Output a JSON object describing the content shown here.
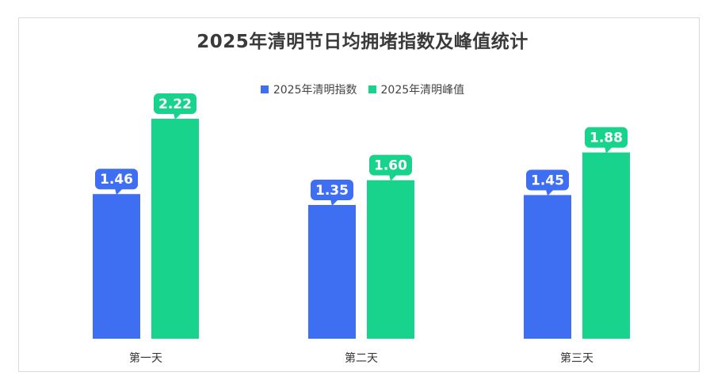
{
  "chart_data": {
    "type": "bar",
    "title": "2025年清明节日均拥堵指数及峰值统计",
    "categories": [
      "第一天",
      "第二天",
      "第三天"
    ],
    "series": [
      {
        "name": "2025年清明指数",
        "values": [
          1.46,
          1.35,
          1.45
        ],
        "color": "#3e6ff2"
      },
      {
        "name": "2025年清明峰值",
        "values": [
          2.22,
          1.6,
          1.88
        ],
        "color": "#18d38b"
      }
    ],
    "ylim": [
      0,
      2.4
    ],
    "value_labels": [
      [
        "1.46",
        "1.35",
        "1.45"
      ],
      [
        "2.22",
        "1.60",
        "1.88"
      ]
    ],
    "grid": false,
    "legend_position": "top-center",
    "xlabel": "",
    "ylabel": ""
  }
}
